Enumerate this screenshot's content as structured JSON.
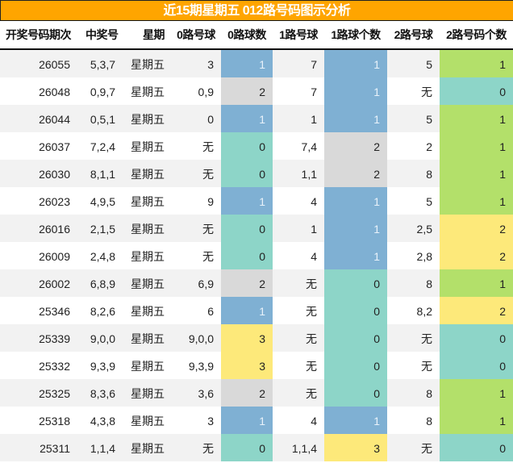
{
  "title": "近15期星期五 012路号码图示分析",
  "columns": [
    "开奖号码期次",
    "中奖号",
    "星期",
    "0路号球",
    "0路球数",
    "1路号球",
    "1路球个数",
    "2路号球",
    "2路号码个数"
  ],
  "colors": {
    "title_bg": "#ffa500",
    "count_0": "#8dd5c8",
    "count_1": "#7fb0d3",
    "count_2": "#d9d9d9",
    "count_3": "#fde97a",
    "road2_count_1": "#b3e06a",
    "road2_count_2": "#fde97a",
    "row_alt": "#f2f2f2"
  },
  "rows": [
    {
      "period": "26055",
      "numbers": "5,3,7",
      "weekday": "星期五",
      "r0_balls": "3",
      "r0_count": "1",
      "r1_balls": "7",
      "r1_count": "1",
      "r2_balls": "5",
      "r2_count": "1"
    },
    {
      "period": "26048",
      "numbers": "0,9,7",
      "weekday": "星期五",
      "r0_balls": "0,9",
      "r0_count": "2",
      "r1_balls": "7",
      "r1_count": "1",
      "r2_balls": "无",
      "r2_count": "0"
    },
    {
      "period": "26044",
      "numbers": "0,5,1",
      "weekday": "星期五",
      "r0_balls": "0",
      "r0_count": "1",
      "r1_balls": "1",
      "r1_count": "1",
      "r2_balls": "5",
      "r2_count": "1"
    },
    {
      "period": "26037",
      "numbers": "7,2,4",
      "weekday": "星期五",
      "r0_balls": "无",
      "r0_count": "0",
      "r1_balls": "7,4",
      "r1_count": "2",
      "r2_balls": "2",
      "r2_count": "1"
    },
    {
      "period": "26030",
      "numbers": "8,1,1",
      "weekday": "星期五",
      "r0_balls": "无",
      "r0_count": "0",
      "r1_balls": "1,1",
      "r1_count": "2",
      "r2_balls": "8",
      "r2_count": "1"
    },
    {
      "period": "26023",
      "numbers": "4,9,5",
      "weekday": "星期五",
      "r0_balls": "9",
      "r0_count": "1",
      "r1_balls": "4",
      "r1_count": "1",
      "r2_balls": "5",
      "r2_count": "1"
    },
    {
      "period": "26016",
      "numbers": "2,1,5",
      "weekday": "星期五",
      "r0_balls": "无",
      "r0_count": "0",
      "r1_balls": "1",
      "r1_count": "1",
      "r2_balls": "2,5",
      "r2_count": "2"
    },
    {
      "period": "26009",
      "numbers": "2,4,8",
      "weekday": "星期五",
      "r0_balls": "无",
      "r0_count": "0",
      "r1_balls": "4",
      "r1_count": "1",
      "r2_balls": "2,8",
      "r2_count": "2"
    },
    {
      "period": "26002",
      "numbers": "6,8,9",
      "weekday": "星期五",
      "r0_balls": "6,9",
      "r0_count": "2",
      "r1_balls": "无",
      "r1_count": "0",
      "r2_balls": "8",
      "r2_count": "1"
    },
    {
      "period": "25346",
      "numbers": "8,2,6",
      "weekday": "星期五",
      "r0_balls": "6",
      "r0_count": "1",
      "r1_balls": "无",
      "r1_count": "0",
      "r2_balls": "8,2",
      "r2_count": "2"
    },
    {
      "period": "25339",
      "numbers": "9,0,0",
      "weekday": "星期五",
      "r0_balls": "9,0,0",
      "r0_count": "3",
      "r1_balls": "无",
      "r1_count": "0",
      "r2_balls": "无",
      "r2_count": "0"
    },
    {
      "period": "25332",
      "numbers": "9,3,9",
      "weekday": "星期五",
      "r0_balls": "9,3,9",
      "r0_count": "3",
      "r1_balls": "无",
      "r1_count": "0",
      "r2_balls": "无",
      "r2_count": "0"
    },
    {
      "period": "25325",
      "numbers": "8,3,6",
      "weekday": "星期五",
      "r0_balls": "3,6",
      "r0_count": "2",
      "r1_balls": "无",
      "r1_count": "0",
      "r2_balls": "8",
      "r2_count": "1"
    },
    {
      "period": "25318",
      "numbers": "4,3,8",
      "weekday": "星期五",
      "r0_balls": "3",
      "r0_count": "1",
      "r1_balls": "4",
      "r1_count": "1",
      "r2_balls": "8",
      "r2_count": "1"
    },
    {
      "period": "25311",
      "numbers": "1,1,4",
      "weekday": "星期五",
      "r0_balls": "无",
      "r0_count": "0",
      "r1_balls": "1,1,4",
      "r1_count": "3",
      "r2_balls": "无",
      "r2_count": "0"
    }
  ]
}
